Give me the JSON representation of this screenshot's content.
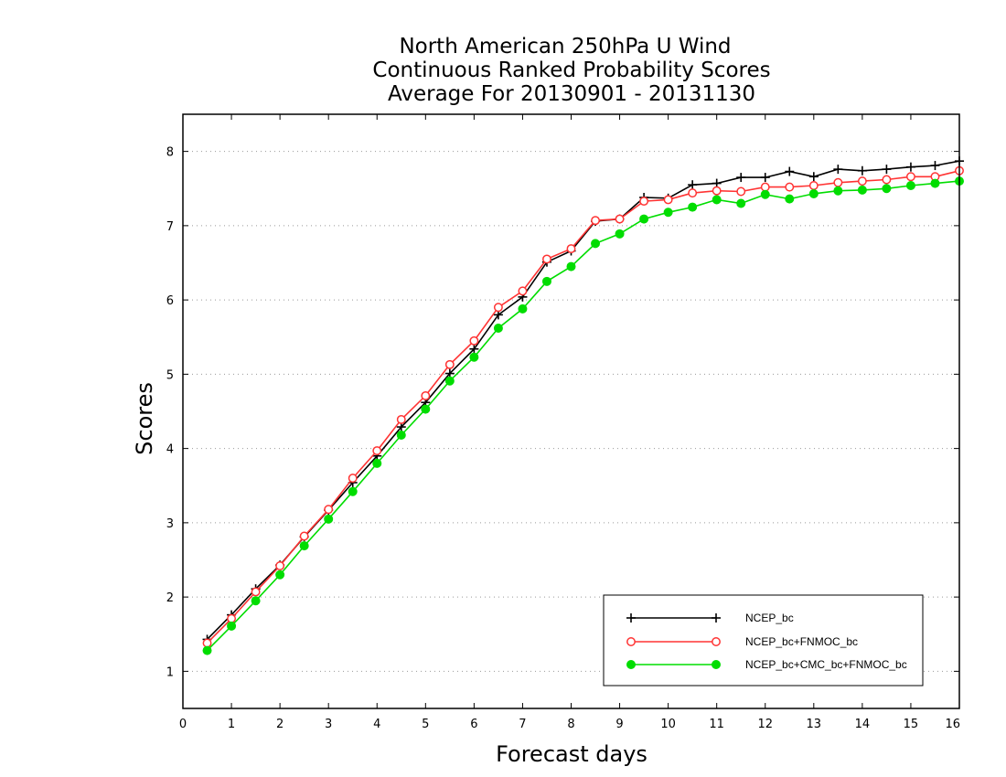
{
  "chart_data": {
    "type": "line",
    "title": [
      "North American 250hPa U Wind",
      "Continuous Ranked Probability Scores",
      "Average For 20130901 - 20131130"
    ],
    "xlabel": "Forecast days",
    "ylabel": "Scores",
    "xlim": [
      0,
      16
    ],
    "ylim": [
      0.5,
      8.5
    ],
    "xticks": [
      0,
      1,
      2,
      3,
      4,
      5,
      6,
      7,
      8,
      9,
      10,
      11,
      12,
      13,
      14,
      15,
      16
    ],
    "yticks": [
      1,
      2,
      3,
      4,
      5,
      6,
      7,
      8
    ],
    "grid": "horizontal dotted",
    "legend_position": "bottom-right",
    "x": [
      0.5,
      1,
      1.5,
      2,
      2.5,
      3,
      3.5,
      4,
      4.5,
      5,
      5.5,
      6,
      6.5,
      7,
      7.5,
      8,
      8.5,
      9,
      9.5,
      10,
      10.5,
      11,
      11.5,
      12,
      12.5,
      13,
      13.5,
      14,
      14.5,
      15,
      15.5,
      16
    ],
    "series": [
      {
        "name": "NCEP_bc",
        "color": "#000000",
        "marker": "plus",
        "values": [
          1.43,
          1.76,
          2.11,
          2.43,
          2.81,
          3.17,
          3.54,
          3.9,
          4.29,
          4.62,
          5.01,
          5.34,
          5.8,
          6.04,
          6.51,
          6.66,
          7.06,
          7.09,
          7.38,
          7.37,
          7.55,
          7.57,
          7.65,
          7.65,
          7.73,
          7.66,
          7.76,
          7.74,
          7.76,
          7.79,
          7.81,
          7.87
        ]
      },
      {
        "name": "NCEP_bc+FNMOC_bc",
        "color": "#ff3333",
        "marker": "open-circle",
        "values": [
          1.38,
          1.71,
          2.07,
          2.42,
          2.82,
          3.18,
          3.6,
          3.97,
          4.39,
          4.71,
          5.13,
          5.45,
          5.9,
          6.12,
          6.55,
          6.69,
          7.07,
          7.09,
          7.33,
          7.35,
          7.44,
          7.47,
          7.46,
          7.52,
          7.52,
          7.54,
          7.58,
          7.6,
          7.62,
          7.66,
          7.66,
          7.74
        ]
      },
      {
        "name": "NCEP_bc+CMC_bc+FNMOC_bc",
        "color": "#00dd00",
        "marker": "filled-circle",
        "values": [
          1.28,
          1.61,
          1.95,
          2.3,
          2.69,
          3.05,
          3.42,
          3.8,
          4.18,
          4.53,
          4.91,
          5.23,
          5.62,
          5.88,
          6.25,
          6.45,
          6.76,
          6.89,
          7.09,
          7.18,
          7.25,
          7.35,
          7.3,
          7.42,
          7.36,
          7.43,
          7.47,
          7.48,
          7.5,
          7.54,
          7.57,
          7.6
        ]
      }
    ]
  }
}
